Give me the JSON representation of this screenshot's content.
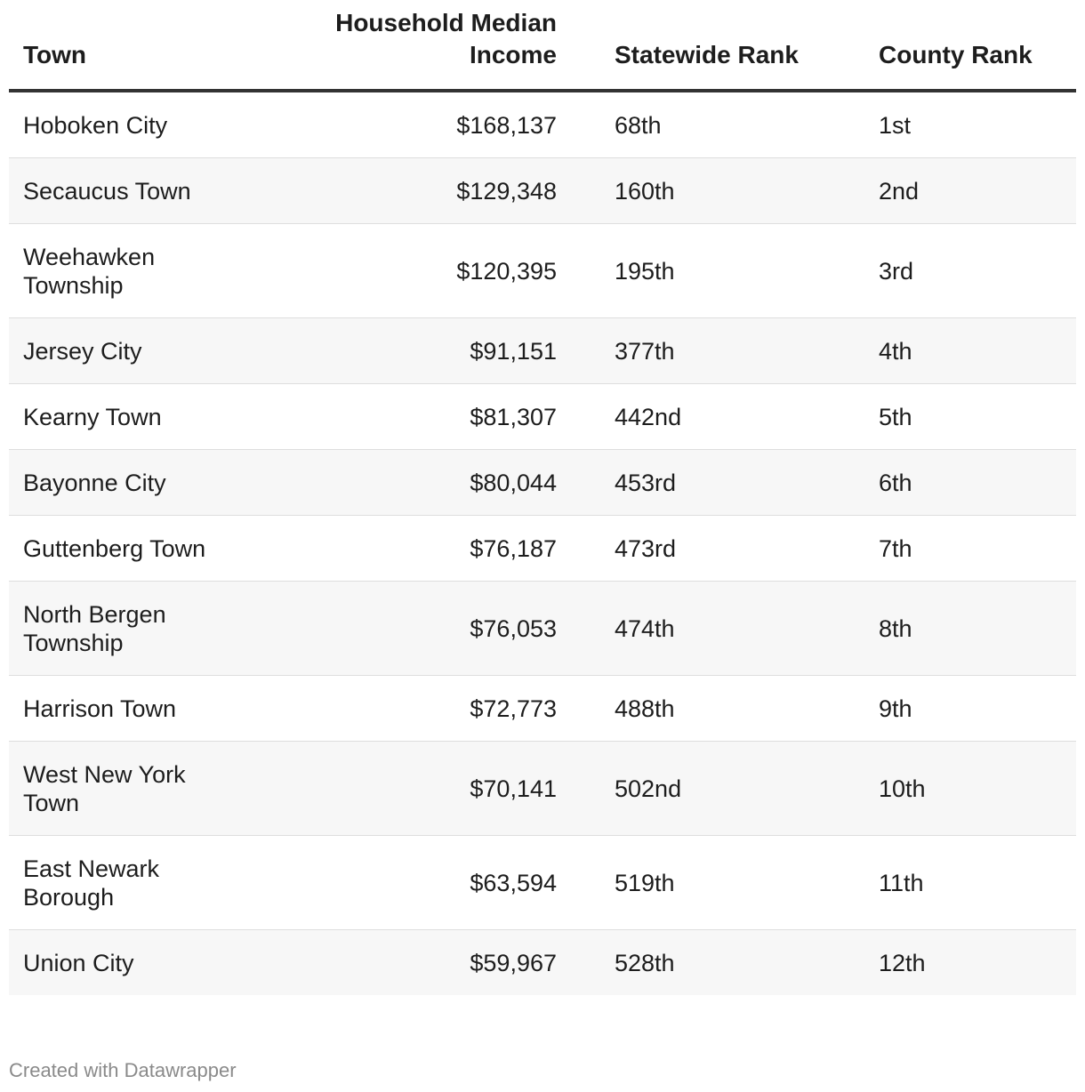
{
  "table": {
    "headers": {
      "town": "Town",
      "income": "Household Median Income",
      "statewide_rank": "Statewide Rank",
      "county_rank": "County Rank"
    },
    "rows": [
      {
        "town": "Hoboken City",
        "income": "$168,137",
        "statewide_rank": "68th",
        "county_rank": "1st"
      },
      {
        "town": "Secaucus Town",
        "income": "$129,348",
        "statewide_rank": "160th",
        "county_rank": "2nd"
      },
      {
        "town": "Weehawken Township",
        "income": "$120,395",
        "statewide_rank": "195th",
        "county_rank": "3rd"
      },
      {
        "town": "Jersey City",
        "income": "$91,151",
        "statewide_rank": "377th",
        "county_rank": "4th"
      },
      {
        "town": "Kearny Town",
        "income": "$81,307",
        "statewide_rank": "442nd",
        "county_rank": "5th"
      },
      {
        "town": "Bayonne City",
        "income": "$80,044",
        "statewide_rank": "453rd",
        "county_rank": "6th"
      },
      {
        "town": "Guttenberg Town",
        "income": "$76,187",
        "statewide_rank": "473rd",
        "county_rank": "7th"
      },
      {
        "town": "North Bergen Township",
        "income": "$76,053",
        "statewide_rank": "474th",
        "county_rank": "8th"
      },
      {
        "town": "Harrison Town",
        "income": "$72,773",
        "statewide_rank": "488th",
        "county_rank": "9th"
      },
      {
        "town": "West New York Town",
        "income": "$70,141",
        "statewide_rank": "502nd",
        "county_rank": "10th"
      },
      {
        "town": "East Newark Borough",
        "income": "$63,594",
        "statewide_rank": "519th",
        "county_rank": "11th"
      },
      {
        "town": "Union City",
        "income": "$59,967",
        "statewide_rank": "528th",
        "county_rank": "12th"
      }
    ]
  },
  "footer": {
    "credit": "Created with Datawrapper"
  },
  "colors": {
    "text": "#1d1d1d",
    "header_rule": "#333333",
    "row_stripe": "#f7f7f7",
    "row_divider": "#dedede",
    "footer_text": "#8a8a8a"
  }
}
